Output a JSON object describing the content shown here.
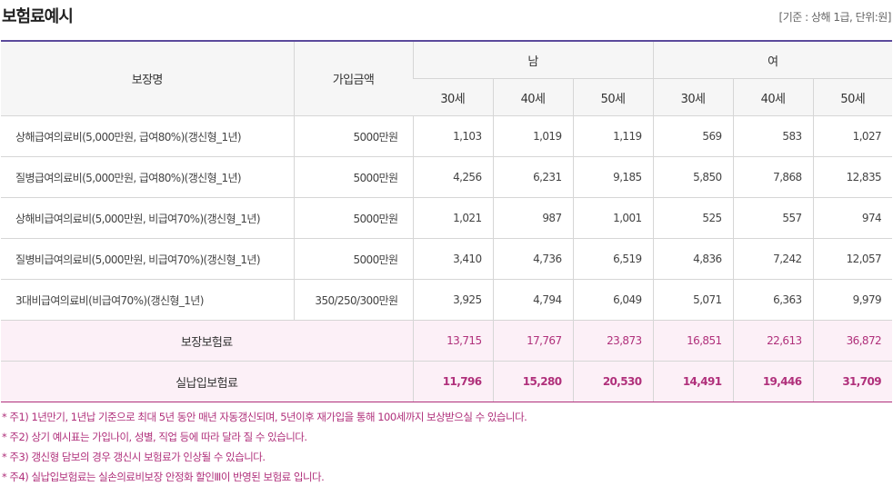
{
  "title": "보험료예시",
  "unit_note": "[기준 : 상해 1급, 단위:원]",
  "table": {
    "header": {
      "coverage": "보장명",
      "amount": "가입금액",
      "male": "남",
      "female": "여",
      "ages": [
        "30세",
        "40세",
        "50세",
        "30세",
        "40세",
        "50세"
      ]
    },
    "rows": [
      {
        "name": "상해급여의료비(5,000만원, 급여80%)(갱신형_1년)",
        "amount": "5000만원",
        "values": [
          "1,103",
          "1,019",
          "1,119",
          "569",
          "583",
          "1,027"
        ]
      },
      {
        "name": "질병급여의료비(5,000만원, 급여80%)(갱신형_1년)",
        "amount": "5000만원",
        "values": [
          "4,256",
          "6,231",
          "9,185",
          "5,850",
          "7,868",
          "12,835"
        ]
      },
      {
        "name": "상해비급여의료비(5,000만원, 비급여70%)(갱신형_1년)",
        "amount": "5000만원",
        "values": [
          "1,021",
          "987",
          "1,001",
          "525",
          "557",
          "974"
        ]
      },
      {
        "name": "질병비급여의료비(5,000만원, 비급여70%)(갱신형_1년)",
        "amount": "5000만원",
        "values": [
          "3,410",
          "4,736",
          "6,519",
          "4,836",
          "7,242",
          "12,057"
        ]
      },
      {
        "name": "3대비급여의료비(비급여70%)(갱신형_1년)",
        "amount": "350/250/300만원",
        "values": [
          "3,925",
          "4,794",
          "6,049",
          "5,071",
          "6,363",
          "9,979"
        ]
      }
    ],
    "totals": [
      {
        "label": "보장보험료",
        "values": [
          "13,715",
          "17,767",
          "23,873",
          "16,851",
          "22,613",
          "36,872"
        ]
      },
      {
        "label": "실납입보험료",
        "values": [
          "11,796",
          "15,280",
          "20,530",
          "14,491",
          "19,446",
          "31,709"
        ]
      }
    ]
  },
  "notes": [
    "* 주1) 1년만기, 1년납 기준으로 최대 5년 동안 매년 자동갱신되며, 5년이후 재가입을 통해 100세까지 보상받으실 수 있습니다.",
    "* 주2) 상기 예시표는 가입나이, 성별, 직업 등에 따라 달라 질 수 있습니다.",
    "* 주3) 갱신형 담보의 경우 갱신시 보험료가 인상될 수 있습니다.",
    "* 주4) 실납입보험료는 실손의료비보장 안정화 할인Ⅲ이 반영된 보험료 입니다."
  ],
  "colors": {
    "accent": "#5b4a9c",
    "highlight": "#b0307b",
    "sum_bg": "#fcf0f7"
  }
}
